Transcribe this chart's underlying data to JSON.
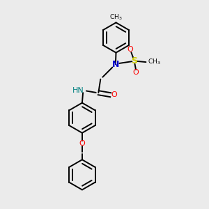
{
  "bg_color": "#ebebeb",
  "bond_color": "#000000",
  "N_color": "#0000cc",
  "O_color": "#ff0000",
  "S_color": "#cccc00",
  "H_color": "#008080",
  "line_width": 1.4,
  "figsize": [
    3.0,
    3.0
  ],
  "dpi": 100,
  "ring_r": 0.072,
  "xlim": [
    0,
    1
  ],
  "ylim": [
    0,
    1
  ]
}
